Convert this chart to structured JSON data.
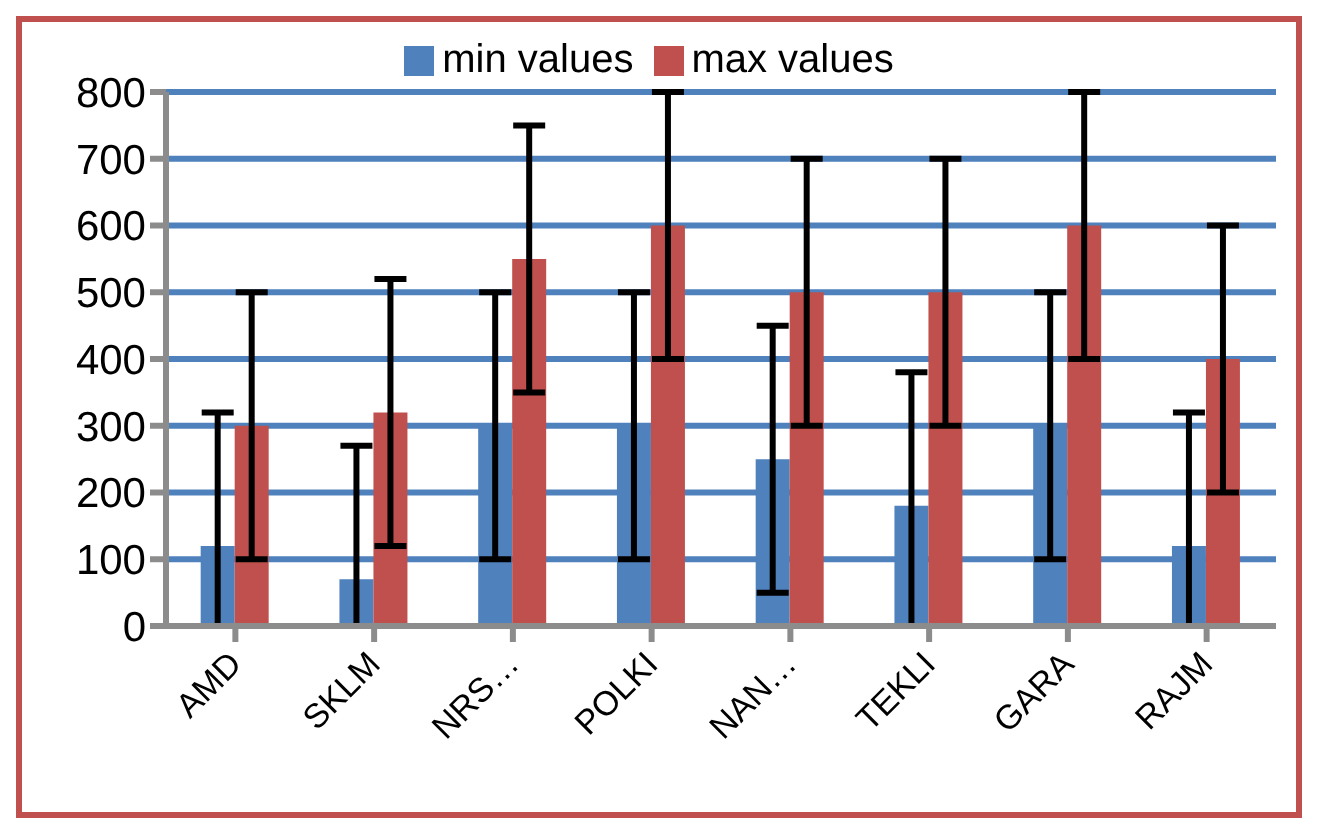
{
  "chart_data": {
    "type": "bar",
    "categories": [
      "AMD",
      "SKLM",
      "NRS…",
      "POLKI",
      "NAN…",
      "TEKLI",
      "GARA",
      "RAJM"
    ],
    "series": [
      {
        "name": "min values",
        "color": "#4f81bd",
        "values": [
          120,
          70,
          300,
          300,
          250,
          180,
          300,
          120
        ],
        "errors": [
          [
            0,
            320
          ],
          [
            0,
            270
          ],
          200,
          200,
          200,
          [
            0,
            380
          ],
          200,
          [
            0,
            320
          ]
        ]
      },
      {
        "name": "max values",
        "color": "#c0504d",
        "values": [
          300,
          320,
          550,
          600,
          500,
          500,
          600,
          400
        ],
        "errors": [
          200,
          200,
          200,
          [
            400,
            800
          ],
          200,
          200,
          [
            400,
            800
          ],
          200
        ]
      }
    ],
    "ylim": [
      0,
      800
    ],
    "yticks": [
      0,
      100,
      200,
      300,
      400,
      500,
      600,
      700,
      800
    ],
    "grid": "y",
    "legend": "top"
  }
}
